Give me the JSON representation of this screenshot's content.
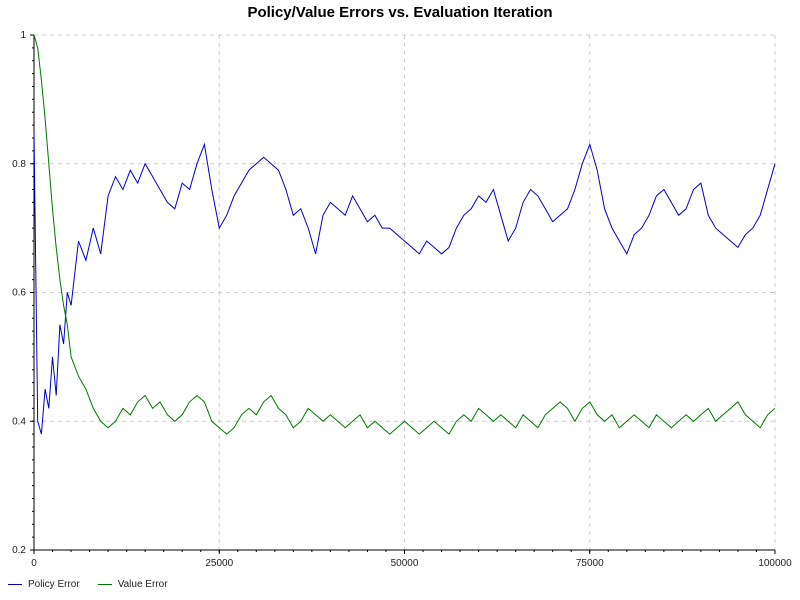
{
  "chart_data": {
    "type": "line",
    "title": "Policy/Value Errors vs. Evaluation Iteration",
    "xlabel": "",
    "ylabel": "",
    "xlim": [
      0,
      100000
    ],
    "ylim": [
      0.2,
      1.0
    ],
    "x_ticks": [
      0,
      25000,
      50000,
      75000,
      100000
    ],
    "x_tick_labels": [
      "0",
      "25000",
      "50000",
      "75000",
      "100000"
    ],
    "y_ticks": [
      0.2,
      0.4,
      0.6,
      0.8,
      1.0
    ],
    "y_tick_labels": [
      "0.2",
      "0.4",
      "0.6",
      "0.8",
      "1"
    ],
    "grid": true,
    "legend_position": "bottom-left",
    "series": [
      {
        "name": "Policy Error",
        "color": "#0000cc",
        "x": [
          0,
          500,
          1000,
          1500,
          2000,
          2500,
          3000,
          3500,
          4000,
          4500,
          5000,
          6000,
          7000,
          8000,
          9000,
          10000,
          11000,
          12000,
          13000,
          14000,
          15000,
          16000,
          17000,
          18000,
          19000,
          20000,
          21000,
          22000,
          23000,
          24000,
          25000,
          26000,
          27000,
          28000,
          29000,
          30000,
          31000,
          32000,
          33000,
          34000,
          35000,
          36000,
          37000,
          38000,
          39000,
          40000,
          41000,
          42000,
          43000,
          44000,
          45000,
          46000,
          47000,
          48000,
          49000,
          50000,
          51000,
          52000,
          53000,
          54000,
          55000,
          56000,
          57000,
          58000,
          59000,
          60000,
          61000,
          62000,
          63000,
          64000,
          65000,
          66000,
          67000,
          68000,
          69000,
          70000,
          71000,
          72000,
          73000,
          74000,
          75000,
          76000,
          77000,
          78000,
          79000,
          80000,
          81000,
          82000,
          83000,
          84000,
          85000,
          86000,
          87000,
          88000,
          89000,
          90000,
          91000,
          92000,
          93000,
          94000,
          95000,
          96000,
          97000,
          98000,
          99000,
          100000
        ],
        "values": [
          0.85,
          0.4,
          0.38,
          0.45,
          0.42,
          0.5,
          0.44,
          0.55,
          0.52,
          0.6,
          0.58,
          0.68,
          0.65,
          0.7,
          0.66,
          0.75,
          0.78,
          0.76,
          0.79,
          0.77,
          0.8,
          0.78,
          0.76,
          0.74,
          0.73,
          0.77,
          0.76,
          0.8,
          0.83,
          0.76,
          0.7,
          0.72,
          0.75,
          0.77,
          0.79,
          0.8,
          0.81,
          0.8,
          0.79,
          0.76,
          0.72,
          0.73,
          0.7,
          0.66,
          0.72,
          0.74,
          0.73,
          0.72,
          0.75,
          0.73,
          0.71,
          0.72,
          0.7,
          0.7,
          0.69,
          0.68,
          0.67,
          0.66,
          0.68,
          0.67,
          0.66,
          0.67,
          0.7,
          0.72,
          0.73,
          0.75,
          0.74,
          0.76,
          0.72,
          0.68,
          0.7,
          0.74,
          0.76,
          0.75,
          0.73,
          0.71,
          0.72,
          0.73,
          0.76,
          0.8,
          0.83,
          0.79,
          0.73,
          0.7,
          0.68,
          0.66,
          0.69,
          0.7,
          0.72,
          0.75,
          0.76,
          0.74,
          0.72,
          0.73,
          0.76,
          0.77,
          0.72,
          0.7,
          0.69,
          0.68,
          0.67,
          0.69,
          0.7,
          0.72,
          0.76,
          0.8
        ]
      },
      {
        "name": "Value Error",
        "color": "#007700",
        "x": [
          0,
          500,
          1000,
          1500,
          2000,
          2500,
          3000,
          3500,
          4000,
          4500,
          5000,
          6000,
          7000,
          8000,
          9000,
          10000,
          11000,
          12000,
          13000,
          14000,
          15000,
          16000,
          17000,
          18000,
          19000,
          20000,
          21000,
          22000,
          23000,
          24000,
          25000,
          26000,
          27000,
          28000,
          29000,
          30000,
          31000,
          32000,
          33000,
          34000,
          35000,
          36000,
          37000,
          38000,
          39000,
          40000,
          41000,
          42000,
          43000,
          44000,
          45000,
          46000,
          47000,
          48000,
          49000,
          50000,
          51000,
          52000,
          53000,
          54000,
          55000,
          56000,
          57000,
          58000,
          59000,
          60000,
          61000,
          62000,
          63000,
          64000,
          65000,
          66000,
          67000,
          68000,
          69000,
          70000,
          71000,
          72000,
          73000,
          74000,
          75000,
          76000,
          77000,
          78000,
          79000,
          80000,
          81000,
          82000,
          83000,
          84000,
          85000,
          86000,
          87000,
          88000,
          89000,
          90000,
          91000,
          92000,
          93000,
          94000,
          95000,
          96000,
          97000,
          98000,
          99000,
          100000
        ],
        "values": [
          1.0,
          0.98,
          0.93,
          0.87,
          0.8,
          0.73,
          0.67,
          0.62,
          0.58,
          0.55,
          0.5,
          0.47,
          0.45,
          0.42,
          0.4,
          0.39,
          0.4,
          0.42,
          0.41,
          0.43,
          0.44,
          0.42,
          0.43,
          0.41,
          0.4,
          0.41,
          0.43,
          0.44,
          0.43,
          0.4,
          0.39,
          0.38,
          0.39,
          0.41,
          0.42,
          0.41,
          0.43,
          0.44,
          0.42,
          0.41,
          0.39,
          0.4,
          0.42,
          0.41,
          0.4,
          0.41,
          0.4,
          0.39,
          0.4,
          0.41,
          0.39,
          0.4,
          0.39,
          0.38,
          0.39,
          0.4,
          0.39,
          0.38,
          0.39,
          0.4,
          0.39,
          0.38,
          0.4,
          0.41,
          0.4,
          0.42,
          0.41,
          0.4,
          0.41,
          0.4,
          0.39,
          0.41,
          0.4,
          0.39,
          0.41,
          0.42,
          0.43,
          0.42,
          0.4,
          0.42,
          0.43,
          0.41,
          0.4,
          0.41,
          0.39,
          0.4,
          0.41,
          0.4,
          0.39,
          0.41,
          0.4,
          0.39,
          0.4,
          0.41,
          0.4,
          0.41,
          0.42,
          0.4,
          0.41,
          0.42,
          0.43,
          0.41,
          0.4,
          0.39,
          0.41,
          0.42
        ]
      }
    ]
  }
}
